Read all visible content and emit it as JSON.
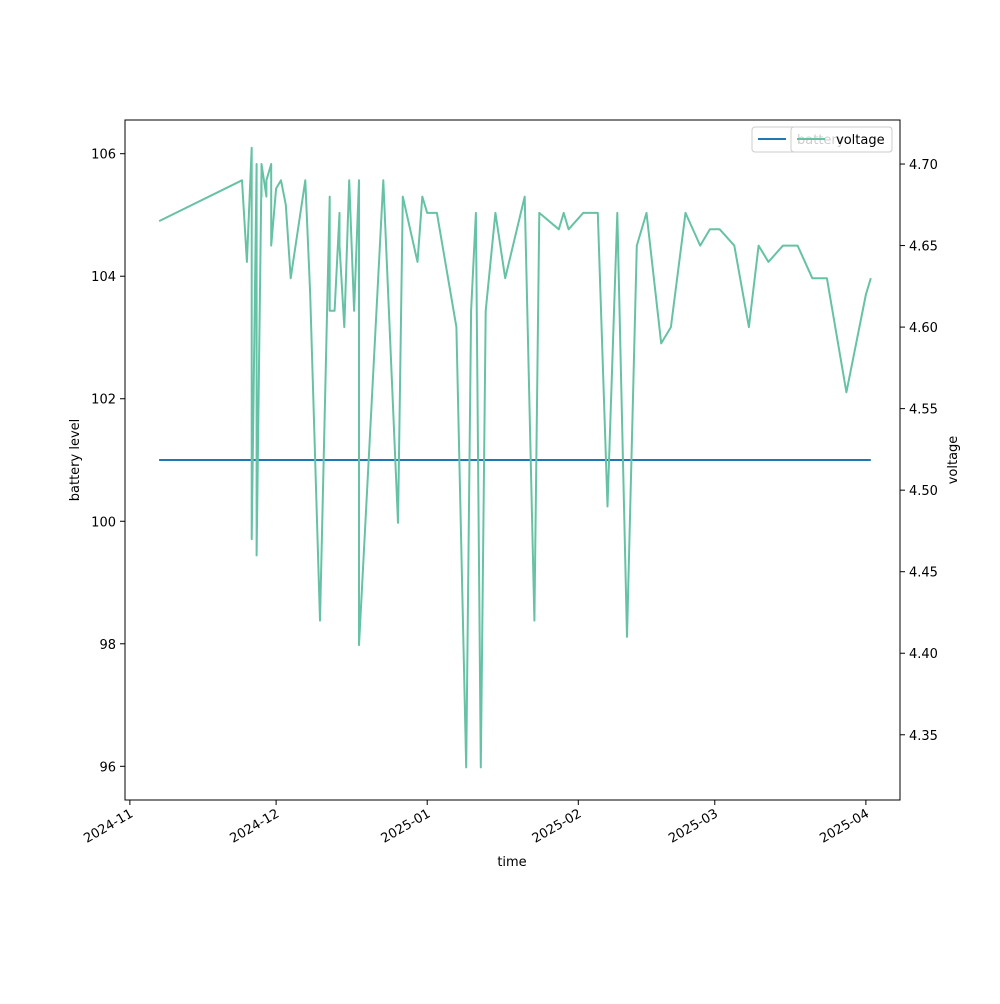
{
  "chart_data": {
    "type": "line",
    "title": "",
    "xlabel": "time",
    "ylabel_left": "battery level",
    "ylabel_right": "voltage",
    "x_tick_labels": [
      "2024-11",
      "2024-12",
      "2025-01",
      "2025-02",
      "2025-03",
      "2025-04"
    ],
    "x_ticks": [
      "2024-11-01",
      "2024-12-01",
      "2025-01-01",
      "2025-02-01",
      "2025-03-01",
      "2025-04-01"
    ],
    "xlim": [
      "2024-10-31",
      "2025-04-08"
    ],
    "y_left_ticks": [
      96,
      98,
      100,
      102,
      104,
      106
    ],
    "y_left_tick_labels": [
      "96",
      "98",
      "100",
      "102",
      "104",
      "106"
    ],
    "ylim_left": [
      95.45,
      106.55
    ],
    "y_right_ticks": [
      4.35,
      4.4,
      4.45,
      4.5,
      4.55,
      4.6,
      4.65,
      4.7
    ],
    "y_right_tick_labels": [
      "4.35",
      "4.40",
      "4.45",
      "4.50",
      "4.55",
      "4.60",
      "4.65",
      "4.70"
    ],
    "ylim_right": [
      4.31,
      4.727
    ],
    "grid": false,
    "legend_placement": "top-right",
    "legends": [
      {
        "label": "battery",
        "color": "#1f77b4",
        "overlapped": true
      },
      {
        "label": "voltage",
        "color": "#66c2a5",
        "overlapped": false
      }
    ],
    "series": [
      {
        "name": "battery",
        "axis": "left",
        "color": "#1f77b4",
        "x": [
          "2024-11-07",
          "2025-04-02"
        ],
        "y": [
          101,
          101
        ]
      },
      {
        "name": "voltage",
        "axis": "right",
        "color": "#66c2a5",
        "x": [
          "2024-11-07",
          "2024-11-24",
          "2024-11-25",
          "2024-11-26",
          "2024-11-26",
          "2024-11-27",
          "2024-11-27",
          "2024-11-28",
          "2024-11-28",
          "2024-11-28",
          "2024-11-29",
          "2024-11-29",
          "2024-11-30",
          "2024-11-30",
          "2024-12-01",
          "2024-12-02",
          "2024-12-03",
          "2024-12-04",
          "2024-12-07",
          "2024-12-08",
          "2024-12-10",
          "2024-12-12",
          "2024-12-12",
          "2024-12-13",
          "2024-12-14",
          "2024-12-14",
          "2024-12-15",
          "2024-12-16",
          "2024-12-17",
          "2024-12-18",
          "2024-12-18",
          "2024-12-23",
          "2024-12-26",
          "2024-12-27",
          "2024-12-30",
          "2024-12-31",
          "2025-01-01",
          "2025-01-03",
          "2025-01-07",
          "2025-01-09",
          "2025-01-10",
          "2025-01-11",
          "2025-01-12",
          "2025-01-13",
          "2025-01-15",
          "2025-01-17",
          "2025-01-21",
          "2025-01-23",
          "2025-01-24",
          "2025-01-28",
          "2025-01-29",
          "2025-01-30",
          "2025-02-02",
          "2025-02-05",
          "2025-02-07",
          "2025-02-09",
          "2025-02-11",
          "2025-02-13",
          "2025-02-15",
          "2025-02-18",
          "2025-02-20",
          "2025-02-23",
          "2025-02-26",
          "2025-02-28",
          "2025-03-02",
          "2025-03-05",
          "2025-03-08",
          "2025-03-10",
          "2025-03-12",
          "2025-03-15",
          "2025-03-18",
          "2025-03-21",
          "2025-03-24",
          "2025-03-28",
          "2025-04-01",
          "2025-04-02"
        ],
        "y": [
          4.665,
          4.69,
          4.64,
          4.71,
          4.47,
          4.7,
          4.46,
          4.695,
          4.68,
          4.7,
          4.68,
          4.69,
          4.7,
          4.65,
          4.685,
          4.69,
          4.675,
          4.63,
          4.69,
          4.62,
          4.42,
          4.68,
          4.61,
          4.61,
          4.67,
          4.65,
          4.6,
          4.69,
          4.61,
          4.69,
          4.405,
          4.69,
          4.48,
          4.68,
          4.64,
          4.68,
          4.67,
          4.67,
          4.6,
          4.33,
          4.61,
          4.67,
          4.33,
          4.61,
          4.67,
          4.63,
          4.68,
          4.42,
          4.67,
          4.66,
          4.67,
          4.66,
          4.67,
          4.67,
          4.49,
          4.67,
          4.41,
          4.65,
          4.67,
          4.59,
          4.6,
          4.67,
          4.65,
          4.66,
          4.66,
          4.65,
          4.6,
          4.65,
          4.64,
          4.65,
          4.65,
          4.63,
          4.63,
          4.56,
          4.62,
          4.63
        ]
      }
    ]
  }
}
